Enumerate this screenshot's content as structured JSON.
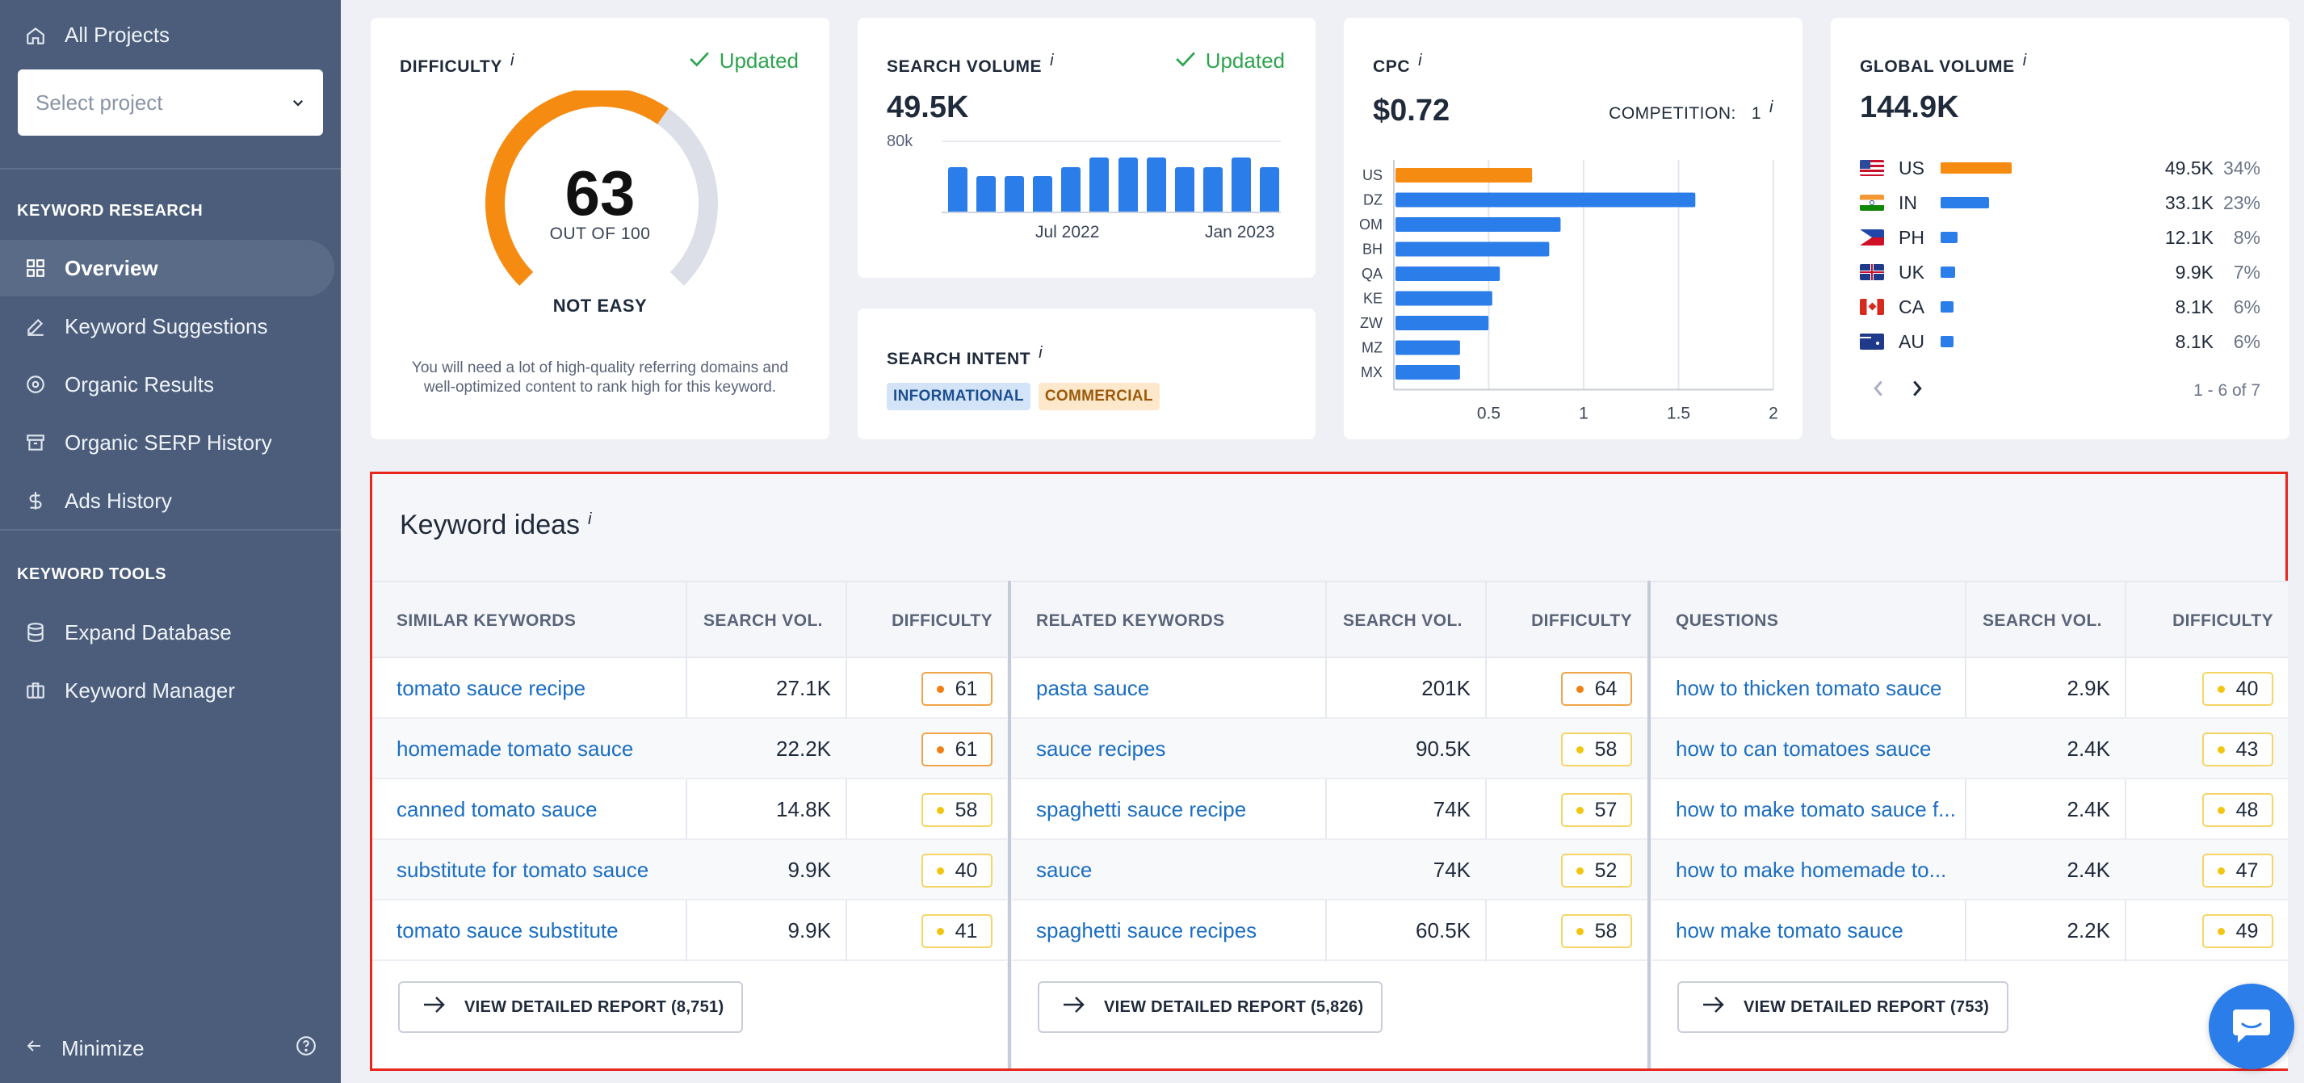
{
  "sidebar": {
    "all_projects": "All Projects",
    "select_placeholder": "Select project",
    "section_research": "KEYWORD RESEARCH",
    "research_items": [
      {
        "label": "Overview",
        "icon": "grid-icon"
      },
      {
        "label": "Keyword Suggestions",
        "icon": "pencil-icon"
      },
      {
        "label": "Organic Results",
        "icon": "target-icon"
      },
      {
        "label": "Organic SERP History",
        "icon": "archive-icon"
      },
      {
        "label": "Ads History",
        "icon": "dollar-icon"
      }
    ],
    "section_tools": "KEYWORD TOOLS",
    "tools_items": [
      {
        "label": "Expand Database",
        "icon": "database-icon"
      },
      {
        "label": "Keyword Manager",
        "icon": "briefcase-icon"
      }
    ],
    "minimize": "Minimize"
  },
  "difficulty": {
    "title": "DIFFICULTY",
    "info": "i",
    "updated": "Updated",
    "value": "63",
    "out_of": "OUT OF 100",
    "gauge_fraction": 0.63,
    "level": "NOT EASY",
    "description": "You will need a lot of high-quality referring domains and well-optimized content to rank high for this keyword."
  },
  "search_volume": {
    "title": "SEARCH VOLUME",
    "info": "i",
    "updated": "Updated",
    "value": "49.5K",
    "y_tick": "80k",
    "x_labels": [
      "Jul 2022",
      "Jan 2023"
    ],
    "bars": [
      0.62,
      0.5,
      0.5,
      0.5,
      0.62,
      0.76,
      0.76,
      0.76,
      0.62,
      0.62,
      0.76,
      0.62
    ]
  },
  "search_intent": {
    "title": "SEARCH INTENT",
    "info": "i",
    "tags": [
      "INFORMATIONAL",
      "COMMERCIAL"
    ]
  },
  "cpc": {
    "title": "CPC",
    "info": "i",
    "value": "$0.72",
    "competition_label": "COMPETITION:",
    "competition_value": "1",
    "chart_data": {
      "type": "bar",
      "orientation": "horizontal",
      "categories": [
        "US",
        "DZ",
        "OM",
        "BH",
        "QA",
        "KE",
        "ZW",
        "MZ",
        "MX"
      ],
      "values": [
        0.72,
        1.58,
        0.87,
        0.81,
        0.55,
        0.51,
        0.49,
        0.34,
        0.34
      ],
      "x_ticks": [
        "0.5",
        "1",
        "1.5",
        "2"
      ],
      "xlim": [
        0,
        2
      ],
      "highlight_color": "#f68b12",
      "bar_color": "#2b7de9"
    }
  },
  "global_volume": {
    "title": "GLOBAL VOLUME",
    "info": "i",
    "value": "144.9K",
    "rows": [
      {
        "code": "US",
        "value": "49.5K",
        "pct": "34%",
        "share": 0.34
      },
      {
        "code": "IN",
        "value": "33.1K",
        "pct": "23%",
        "share": 0.23
      },
      {
        "code": "PH",
        "value": "12.1K",
        "pct": "8%",
        "share": 0.08
      },
      {
        "code": "UK",
        "value": "9.9K",
        "pct": "7%",
        "share": 0.07
      },
      {
        "code": "CA",
        "value": "8.1K",
        "pct": "6%",
        "share": 0.06
      },
      {
        "code": "AU",
        "value": "8.1K",
        "pct": "6%",
        "share": 0.06
      }
    ],
    "pagination": "1 - 6 of 7"
  },
  "keyword_ideas": {
    "title": "Keyword ideas",
    "info": "i",
    "col_vol": "SEARCH VOL.",
    "col_diff": "DIFFICULTY",
    "groups": [
      {
        "header": "SIMILAR KEYWORDS",
        "button": "VIEW DETAILED REPORT (8,751)",
        "rows": [
          {
            "kw": "tomato sauce recipe",
            "vol": "27.1K",
            "diff": "61",
            "level": "orange"
          },
          {
            "kw": "homemade tomato sauce",
            "vol": "22.2K",
            "diff": "61",
            "level": "orange"
          },
          {
            "kw": "canned tomato sauce",
            "vol": "14.8K",
            "diff": "58",
            "level": "yellow"
          },
          {
            "kw": "substitute for tomato sauce",
            "vol": "9.9K",
            "diff": "40",
            "level": "yellow"
          },
          {
            "kw": "tomato sauce substitute",
            "vol": "9.9K",
            "diff": "41",
            "level": "yellow"
          }
        ]
      },
      {
        "header": "RELATED KEYWORDS",
        "button": "VIEW DETAILED REPORT (5,826)",
        "rows": [
          {
            "kw": "pasta sauce",
            "vol": "201K",
            "diff": "64",
            "level": "orange"
          },
          {
            "kw": "sauce recipes",
            "vol": "90.5K",
            "diff": "58",
            "level": "yellow"
          },
          {
            "kw": "spaghetti sauce recipe",
            "vol": "74K",
            "diff": "57",
            "level": "yellow"
          },
          {
            "kw": "sauce",
            "vol": "74K",
            "diff": "52",
            "level": "yellow"
          },
          {
            "kw": "spaghetti sauce recipes",
            "vol": "60.5K",
            "diff": "58",
            "level": "yellow"
          }
        ]
      },
      {
        "header": "QUESTIONS",
        "button": "VIEW DETAILED REPORT (753)",
        "rows": [
          {
            "kw": "how to thicken tomato sauce",
            "vol": "2.9K",
            "diff": "40",
            "level": "yellow"
          },
          {
            "kw": "how to can tomatoes sauce",
            "vol": "2.4K",
            "diff": "43",
            "level": "yellow"
          },
          {
            "kw": "how to make tomato sauce f...",
            "vol": "2.4K",
            "diff": "48",
            "level": "yellow"
          },
          {
            "kw": "how to make homemade to...",
            "vol": "2.4K",
            "diff": "47",
            "level": "yellow"
          },
          {
            "kw": "how make tomato sauce",
            "vol": "2.2K",
            "diff": "49",
            "level": "yellow"
          }
        ]
      }
    ]
  }
}
